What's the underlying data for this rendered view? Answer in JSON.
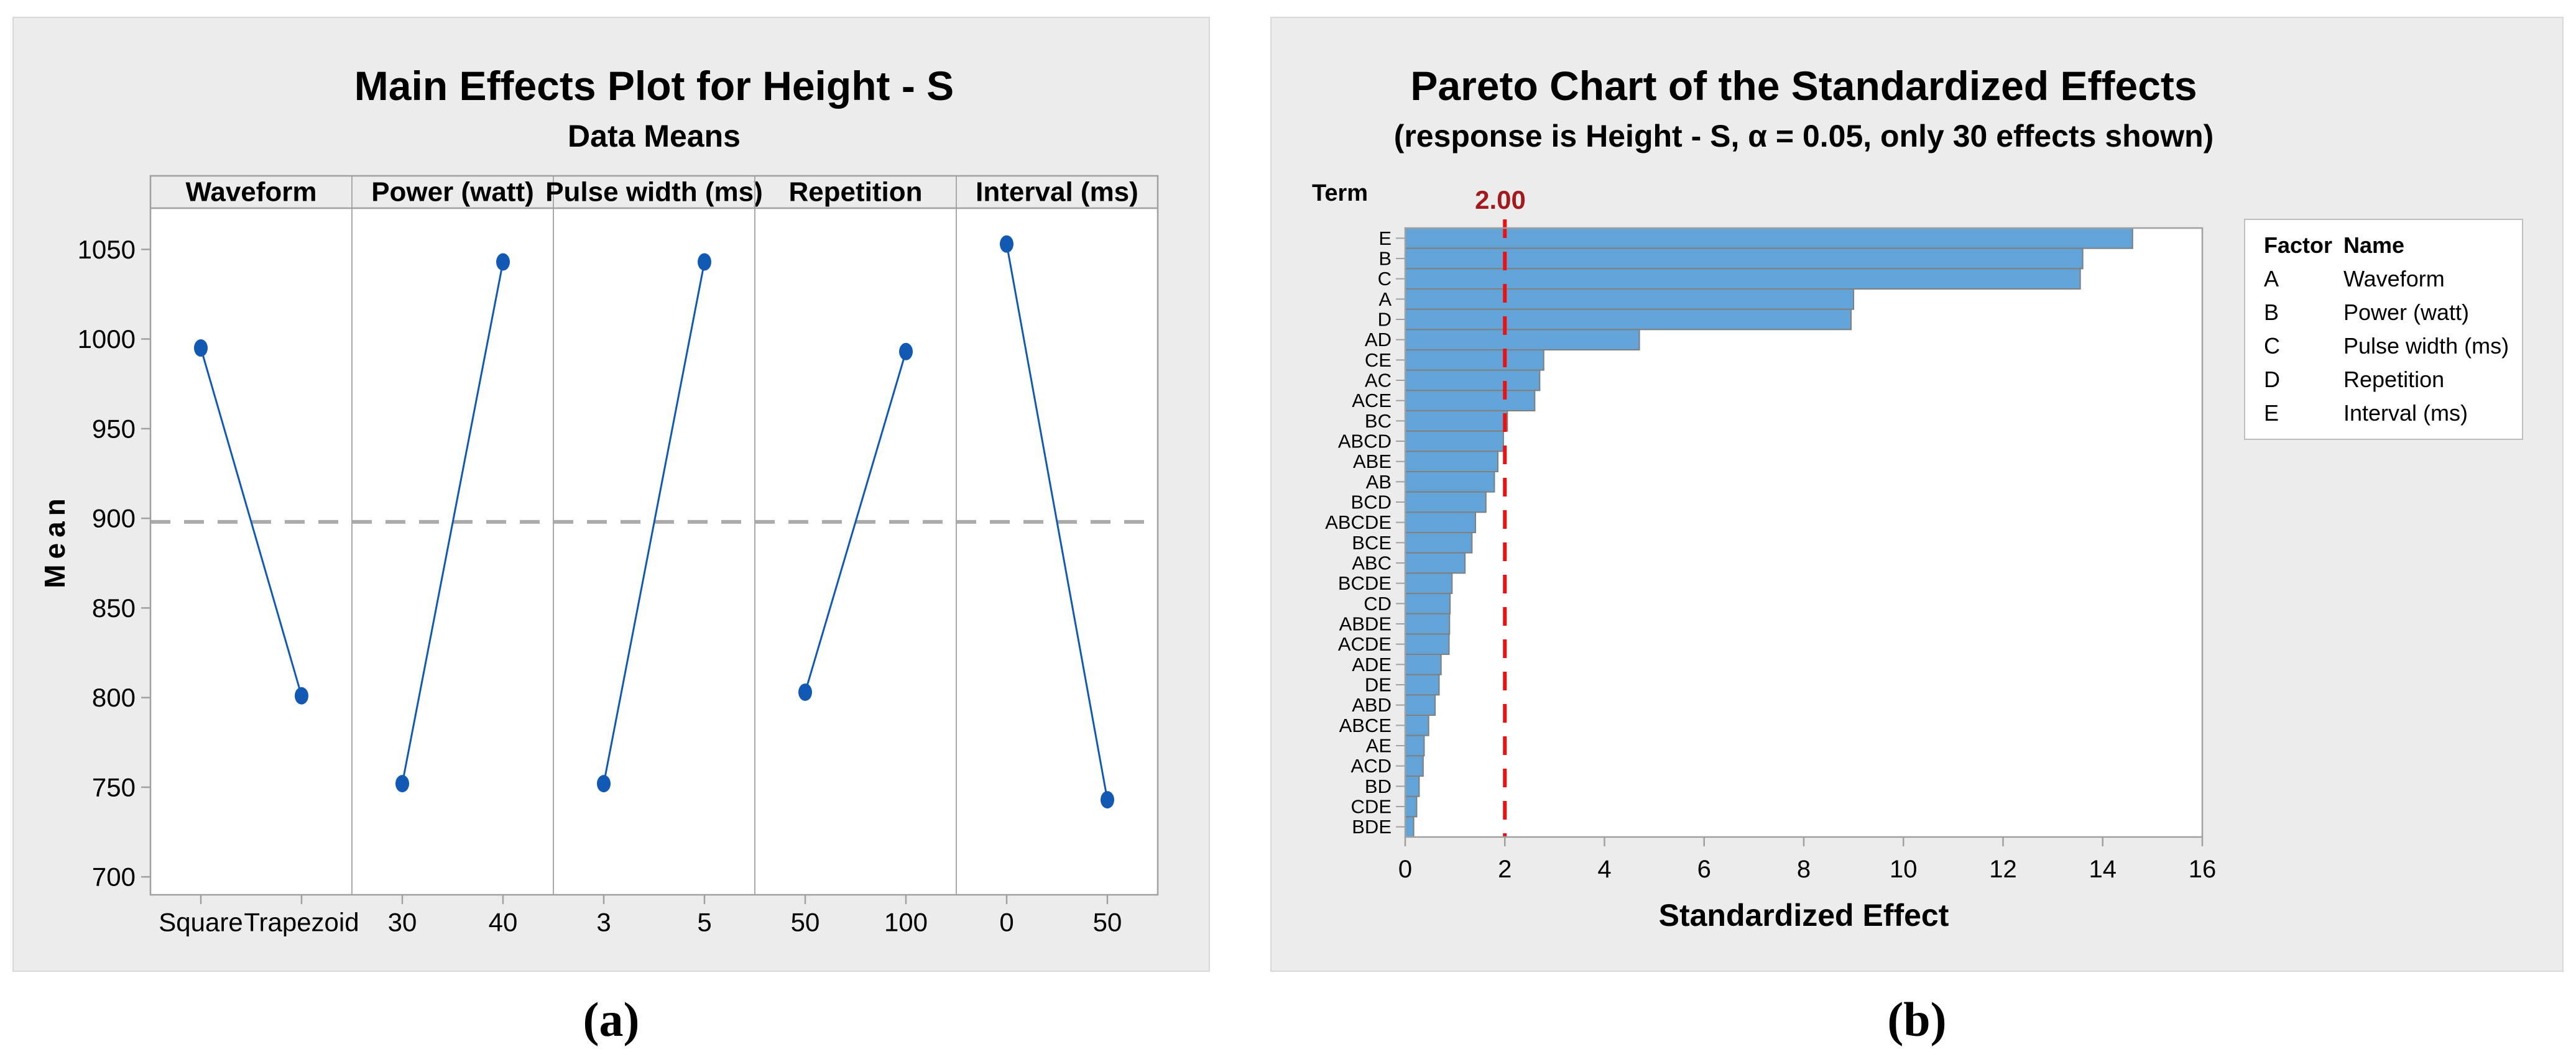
{
  "captions": {
    "a": "(a)",
    "b": "(b)"
  },
  "colors": {
    "card_bg": "#ECECEC",
    "card_border": "#D8D8D8",
    "plot_bg": "#FFFFFF",
    "frame_gray": "#A0A0A0",
    "series_blue": "#1159B3",
    "bar_fill": "#62A4D8",
    "bar_stroke": "#7F7F7F",
    "mean_dash_gray": "#ABABAB",
    "ref_line_red": "#EE1111",
    "ref_label_red": "#A31A1E"
  },
  "chart_data": [
    {
      "type": "line",
      "title": "Main Effects Plot for Height - S",
      "subtitle": "Data Means",
      "ylabel": "Mean",
      "yticks": [
        1050,
        1000,
        950,
        900,
        850,
        800,
        750,
        700
      ],
      "ylim": [
        690,
        1073
      ],
      "grand_mean": 898,
      "grid": false,
      "panels": [
        {
          "label": "Waveform",
          "categories": [
            "Square",
            "Trapezoid"
          ],
          "values": [
            995,
            801
          ]
        },
        {
          "label": "Power (watt)",
          "categories": [
            "30",
            "40"
          ],
          "values": [
            752,
            1043
          ]
        },
        {
          "label": "Pulse width (ms)",
          "categories": [
            "3",
            "5"
          ],
          "values": [
            752,
            1043
          ]
        },
        {
          "label": "Repetition",
          "categories": [
            "50",
            "100"
          ],
          "values": [
            803,
            993
          ]
        },
        {
          "label": "Interval (ms)",
          "categories": [
            "0",
            "50"
          ],
          "values": [
            1053,
            743
          ]
        }
      ]
    },
    {
      "type": "bar",
      "title": "Pareto Chart of the Standardized Effects",
      "subtitle": "(response is Height - S, α = 0.05, only 30 effects shown)",
      "xlabel": "Standardized Effect",
      "term_axis_label": "Term",
      "xticks": [
        0,
        2,
        4,
        6,
        8,
        10,
        12,
        14,
        16
      ],
      "xlim": [
        0,
        16
      ],
      "reference_line": {
        "value": 2,
        "label": "2.00"
      },
      "terms": [
        "E",
        "B",
        "C",
        "A",
        "D",
        "AD",
        "CE",
        "AC",
        "ACE",
        "BC",
        "ABCD",
        "ABE",
        "AB",
        "BCD",
        "ABCDE",
        "BCE",
        "ABC",
        "BCDE",
        "CD",
        "ABDE",
        "ACDE",
        "ADE",
        "DE",
        "ABD",
        "ABCE",
        "AE",
        "ACD",
        "BD",
        "CDE",
        "BDE"
      ],
      "values": [
        14.6,
        13.6,
        13.55,
        9.0,
        8.95,
        4.7,
        2.78,
        2.7,
        2.6,
        2.05,
        1.97,
        1.86,
        1.79,
        1.62,
        1.41,
        1.34,
        1.2,
        0.94,
        0.9,
        0.89,
        0.88,
        0.72,
        0.68,
        0.6,
        0.47,
        0.38,
        0.36,
        0.28,
        0.23,
        0.17
      ],
      "legend": {
        "headers": [
          "Factor",
          "Name"
        ],
        "rows": [
          [
            "A",
            "Waveform"
          ],
          [
            "B",
            "Power (watt)"
          ],
          [
            "C",
            "Pulse width (ms)"
          ],
          [
            "D",
            "Repetition"
          ],
          [
            "E",
            "Interval (ms)"
          ]
        ]
      }
    }
  ]
}
